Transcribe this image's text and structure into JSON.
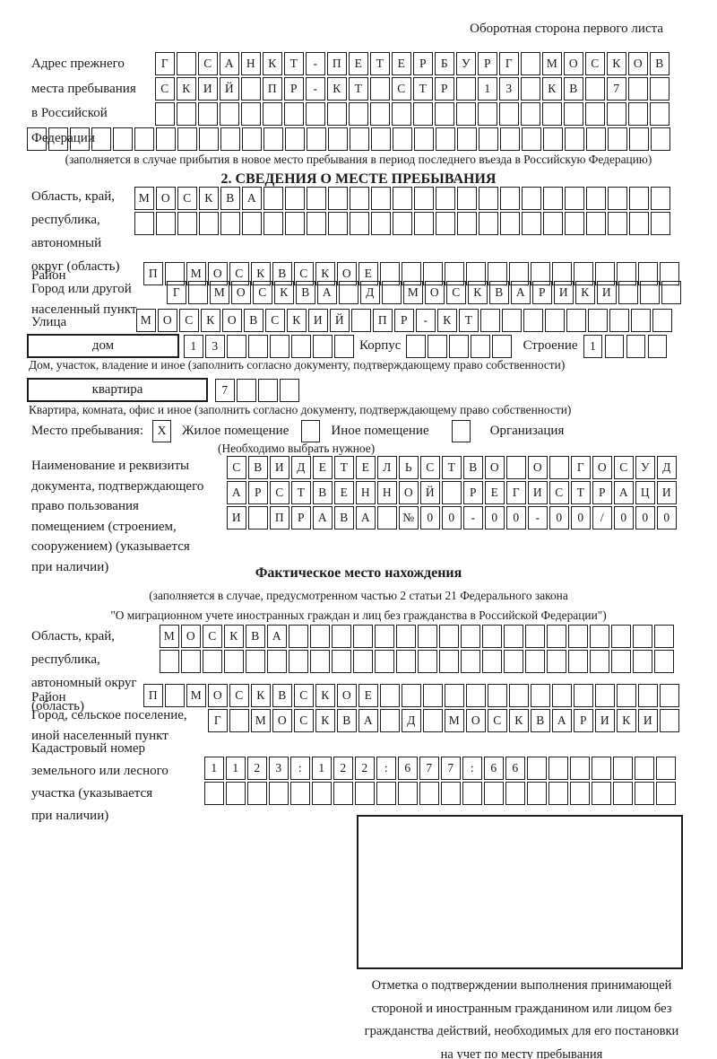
{
  "page": {
    "ink_color": "#1b1b1b",
    "header_note": "Оборотная сторона первого листа"
  },
  "prev_address": {
    "label_lines": [
      "Адрес прежнего",
      "места пребывания",
      "в Российской",
      "Федерации"
    ],
    "row1": "Г САНКТ-ПЕТЕРБУРГ МОСКОВ",
    "row2": "СКИЙ ПР-КТ СТР 13 КВ 7",
    "row3": "",
    "row4": "",
    "note": "(заполняется в случае прибытия в новое место пребывания в период последнего въезда в Российскую Федерацию)"
  },
  "s2": {
    "title": "2. СВЕДЕНИЯ О МЕСТЕ ПРЕБЫВАНИЯ",
    "region": {
      "label_lines": [
        "Область, край,",
        "республика,",
        "автономный",
        "округ (область)"
      ],
      "row1": "МОСКВА",
      "row2": ""
    },
    "district": {
      "label": "Район",
      "value": "П МОСКВСКОЕ"
    },
    "city": {
      "label_lines": [
        "Город или другой",
        "населенный пункт"
      ],
      "value": "Г МОСКВА Д МОСКВАРИКИ"
    },
    "street": {
      "label": "Улица",
      "value": "МОСКОВСКИЙ ПР-КТ"
    },
    "house": {
      "caption": "дом",
      "value": "13"
    },
    "korpus": {
      "label": "Корпус",
      "value": ""
    },
    "stroenie": {
      "label": "Строение",
      "value": "1"
    },
    "house_note": "Дом, участок, владение и иное (заполнить согласно документу, подтверждающему право собственности)",
    "flat": {
      "caption": "квартира",
      "value": "7"
    },
    "flat_note": "Квартира, комната, офис и иное (заполнить согласно документу, подтверждающему право собственности)",
    "place": {
      "label": "Место пребывания:",
      "options": [
        {
          "label": "Жилое помещение",
          "mark": "X"
        },
        {
          "label": "Иное помещение",
          "mark": ""
        },
        {
          "label": "Организация",
          "mark": ""
        }
      ],
      "note": "(Необходимо выбрать нужное)"
    },
    "doc": {
      "label_lines": [
        "Наименование и реквизиты",
        "документа, подтверждающего",
        "право пользования",
        "помещением (строением,",
        "сооружением) (указывается",
        "при наличии)"
      ],
      "row1": "СВИДЕТЕЛЬСТВО О ГОСУД",
      "row2": "АРСТВЕННОЙ РЕГИСТРАЦИ",
      "row3": "И ПРАВА №00-00-00/000"
    }
  },
  "actual": {
    "title": "Фактическое место нахождения",
    "note_lines": [
      "(заполняется в случае, предусмотренном частью 2 статьи 21 Федерального закона",
      "\"О миграционном учете иностранных граждан и лиц без гражданства в Российской Федерации\")"
    ],
    "region": {
      "label_lines": [
        "Область, край,",
        "республика,",
        "автономный округ",
        "(область)"
      ],
      "row1": "МОСКВА",
      "row2": ""
    },
    "district": {
      "label": "Район",
      "value": "П МОСКВСКОЕ"
    },
    "city": {
      "label_lines": [
        "Город, сельское поселение,",
        "иной населенный пункт"
      ],
      "value": "Г МОСКВА Д МОСКВАРИКИ"
    },
    "cadastre": {
      "label_lines": [
        "Кадастровый номер",
        "земельного или лесного",
        "участка (указывается",
        "при наличии)"
      ],
      "row1": "1123:122:677:66",
      "row2": ""
    },
    "stamp_caption_lines": [
      "Отметка о подтверждении выполнения принимающей",
      "стороной и иностранным гражданином или лицом без",
      "гражданства действий, необходимых для его постановки",
      "на учет по месту пребывания"
    ]
  }
}
